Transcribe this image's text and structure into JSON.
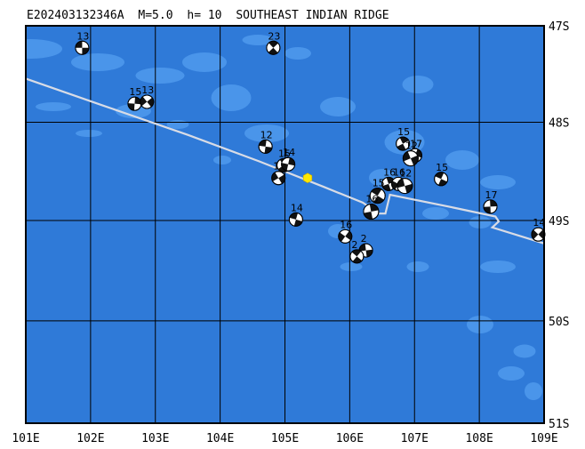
{
  "header": {
    "event_id": "E202403132346A",
    "magnitude": "M=5.0",
    "depth": "h= 10",
    "region": "SOUTHEAST INDIAN RIDGE"
  },
  "colors": {
    "ocean": "#2f7ad8",
    "shallow": "#4a95ea",
    "ridge": "#d8dce6",
    "grid": "#000000",
    "epicenter": "#ffe800"
  },
  "chart_data": {
    "type": "map",
    "projection": "mercator",
    "lon_range": [
      101,
      109
    ],
    "lat_range": [
      -51,
      -47
    ],
    "x_tick_labels": [
      "101E",
      "102E",
      "103E",
      "104E",
      "105E",
      "106E",
      "107E",
      "108E",
      "109E"
    ],
    "y_tick_labels": [
      "47S",
      "48S",
      "49S",
      "50S",
      "51S"
    ],
    "grid": true,
    "epicenter": {
      "lon": 105.35,
      "lat": -48.57
    },
    "plate_boundary": [
      [
        101.0,
        -47.55
      ],
      [
        102.2,
        -47.83
      ],
      [
        103.5,
        -48.13
      ],
      [
        104.6,
        -48.4
      ],
      [
        105.6,
        -48.66
      ],
      [
        106.2,
        -48.82
      ],
      [
        106.45,
        -48.93
      ],
      [
        106.55,
        -48.93
      ],
      [
        106.62,
        -48.74
      ],
      [
        107.6,
        -48.87
      ],
      [
        108.25,
        -48.96
      ],
      [
        108.3,
        -49.01
      ],
      [
        108.2,
        -49.07
      ],
      [
        109.0,
        -49.23
      ]
    ],
    "mechanisms": [
      {
        "label": "13",
        "lon": 101.87,
        "lat": -47.23
      },
      {
        "label": "23",
        "lon": 104.82,
        "lat": -47.23
      },
      {
        "label": "15",
        "lon": 102.68,
        "lat": -47.81
      },
      {
        "label": "13",
        "lon": 102.87,
        "lat": -47.79
      },
      {
        "label": "12",
        "lon": 104.7,
        "lat": -48.25
      },
      {
        "label": "15",
        "lon": 104.98,
        "lat": -48.44
      },
      {
        "label": "14",
        "lon": 105.05,
        "lat": -48.43
      },
      {
        "label": "1",
        "lon": 104.9,
        "lat": -48.57
      },
      {
        "label": "14",
        "lon": 105.17,
        "lat": -48.99
      },
      {
        "label": "15",
        "lon": 106.82,
        "lat": -48.22
      },
      {
        "label": "17",
        "lon": 107.01,
        "lat": -48.34
      },
      {
        "label": "12",
        "lon": 106.94,
        "lat": -48.37
      },
      {
        "label": "15",
        "lon": 107.41,
        "lat": -48.58
      },
      {
        "label": "16",
        "lon": 106.6,
        "lat": -48.63
      },
      {
        "label": "16",
        "lon": 106.75,
        "lat": -48.63
      },
      {
        "label": "12",
        "lon": 106.85,
        "lat": -48.65
      },
      {
        "label": "15",
        "lon": 106.43,
        "lat": -48.75
      },
      {
        "label": "16",
        "lon": 106.33,
        "lat": -48.91
      },
      {
        "label": "16",
        "lon": 105.93,
        "lat": -49.16
      },
      {
        "label": "2",
        "lon": 106.25,
        "lat": -49.3
      },
      {
        "label": "2",
        "lon": 106.11,
        "lat": -49.36
      },
      {
        "label": "17",
        "lon": 108.17,
        "lat": -48.86
      },
      {
        "label": "14",
        "lon": 108.91,
        "lat": -49.14
      }
    ]
  }
}
